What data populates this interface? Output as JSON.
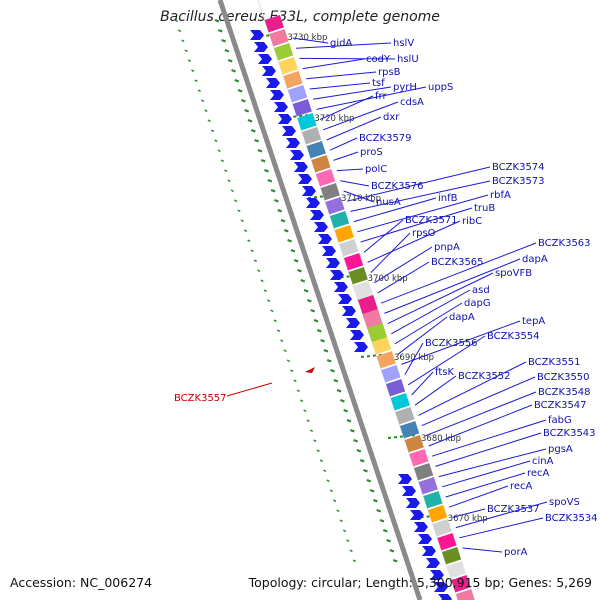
{
  "title": "Bacillus cereus E33L, complete genome",
  "accession": "Accession: NC_006274",
  "topology": "Topology: circular; Length: 5,300,915 bp; Genes: 5,269",
  "highlight_gene": "BCZK3557",
  "kbp_marks": [
    "3730 kbp",
    "3720 kbp",
    "3710 kbp",
    "3700 kbp",
    "3690 kbp",
    "3680 kbp",
    "3670 kbp"
  ],
  "gene_labels": [
    "gidA",
    "hslV",
    "hslU",
    "codY",
    "rpsB",
    "tsf",
    "pyrH",
    "uppS",
    "frr",
    "cdsA",
    "dxr",
    "BCZK3579",
    "proS",
    "polC",
    "BCZK3576",
    "nusA",
    "BCZK3574",
    "BCZK3573",
    "infB",
    "rbfA",
    "truB",
    "BCZK3571",
    "ribC",
    "rpsO",
    "pnpA",
    "BCZK3565",
    "BCZK3563",
    "dapA",
    "spoVFB",
    "asd",
    "dapG",
    "dapA",
    "tepA",
    "BCZK3556",
    "BCZK3554",
    "ftsK",
    "BCZK3552",
    "BCZK3551",
    "BCZK3550",
    "BCZK3548",
    "BCZK3547",
    "fabG",
    "BCZK3543",
    "pgsA",
    "cinA",
    "recA",
    "recA",
    "BCZK3537",
    "spoVS",
    "BCZK3534",
    "porA"
  ],
  "colors": {
    "gene_text": "#1010b0",
    "label_line": "#1a1ad8",
    "backbone": "#8a8a8a",
    "arrow": "#1a1af0",
    "tick": "#2a8a2a",
    "highlight": "#cc0000"
  }
}
